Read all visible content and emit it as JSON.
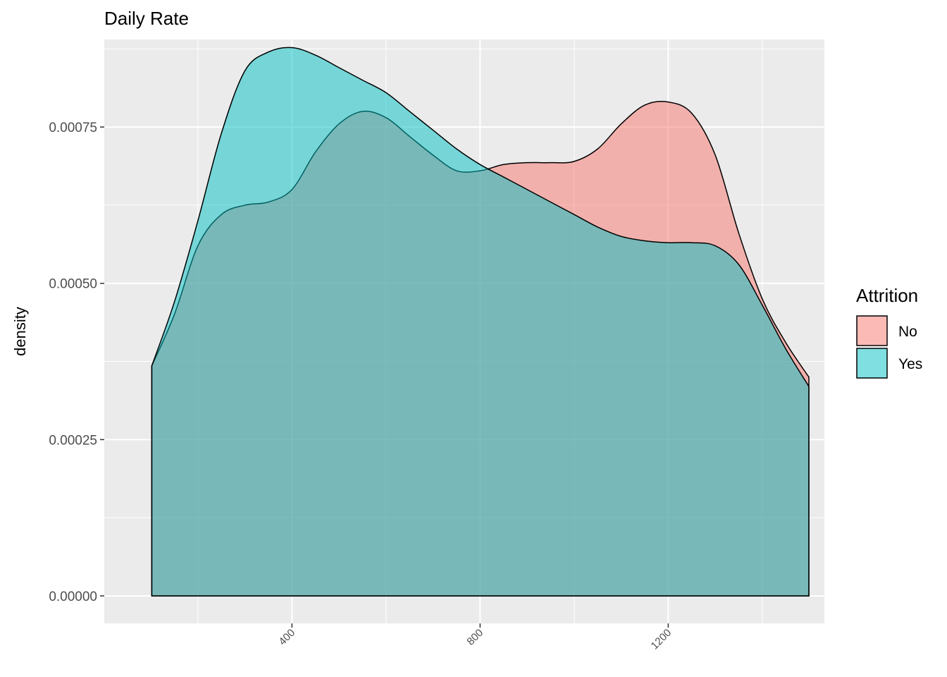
{
  "chart_data": {
    "type": "area",
    "title": "Daily Rate",
    "xlabel": "",
    "ylabel": "density",
    "xlim": [
      1,
      1532
    ],
    "ylim": [
      -4.4e-05,
      0.00089
    ],
    "x_ticks": [
      400,
      800,
      1200
    ],
    "x_tick_labels": [
      "400",
      "800",
      "1200"
    ],
    "y_ticks": [
      0,
      0.00025,
      0.0005,
      0.00075
    ],
    "y_tick_labels": [
      "0.00000",
      "0.00025",
      "0.00050",
      "0.00075"
    ],
    "grid": true,
    "legend": {
      "title": "Attrition",
      "position": "right"
    },
    "series": [
      {
        "name": "No",
        "color": "#F8766D",
        "x": [
          102,
          150,
          200,
          250,
          300,
          350,
          400,
          450,
          500,
          550,
          600,
          650,
          700,
          750,
          800,
          850,
          900,
          950,
          1000,
          1050,
          1100,
          1150,
          1200,
          1250,
          1300,
          1350,
          1400,
          1450,
          1499
        ],
        "y": [
          0.000368,
          0.00045,
          0.00056,
          0.00061,
          0.000625,
          0.00063,
          0.00065,
          0.00071,
          0.000755,
          0.000775,
          0.000765,
          0.000735,
          0.000705,
          0.00068,
          0.00068,
          0.00069,
          0.000693,
          0.000693,
          0.000695,
          0.000715,
          0.000755,
          0.000785,
          0.00079,
          0.000772,
          0.000705,
          0.00058,
          0.000475,
          0.000405,
          0.00035
        ]
      },
      {
        "name": "Yes",
        "color": "#00BFC4",
        "x": [
          102,
          150,
          200,
          250,
          300,
          350,
          400,
          450,
          500,
          550,
          600,
          650,
          700,
          750,
          800,
          850,
          900,
          950,
          1000,
          1050,
          1100,
          1150,
          1200,
          1250,
          1300,
          1350,
          1400,
          1450,
          1499
        ],
        "y": [
          0.000368,
          0.00047,
          0.0006,
          0.00074,
          0.00084,
          0.00087,
          0.000877,
          0.000865,
          0.000845,
          0.000825,
          0.000805,
          0.000775,
          0.000745,
          0.000715,
          0.00069,
          0.00067,
          0.00065,
          0.00063,
          0.00061,
          0.00059,
          0.000575,
          0.000568,
          0.000565,
          0.000565,
          0.00056,
          0.00053,
          0.000465,
          0.000395,
          0.000335
        ]
      }
    ]
  }
}
